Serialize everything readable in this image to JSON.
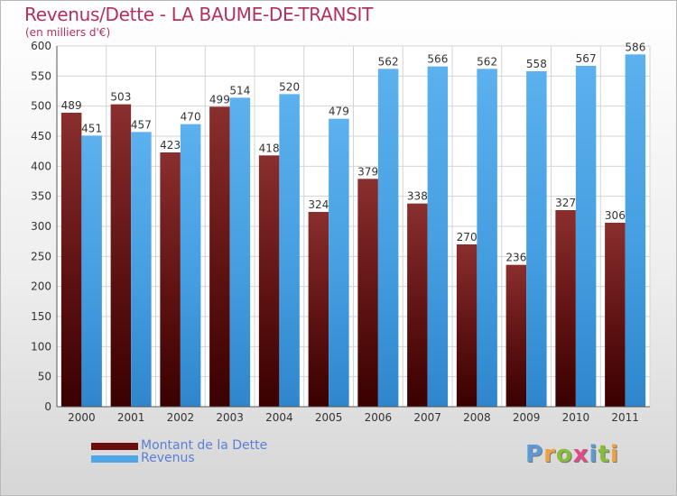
{
  "header": {
    "title": "Revenus/Dette - LA BAUME-DE-TRANSIT",
    "subtitle": "(en milliers d'€)"
  },
  "legend": {
    "items": [
      {
        "label": "Montant de la Dette",
        "color": "#6b0d0d"
      },
      {
        "label": "Revenus",
        "color": "#4ea6e6"
      }
    ]
  },
  "logo": {
    "text": "Proxiti",
    "letters": [
      "P",
      "r",
      "o",
      "x",
      "i",
      "t",
      "i"
    ],
    "colors": [
      "#5b9ad6",
      "#e9a341",
      "#87bd3b",
      "#de4c88",
      "#5b9ad6",
      "#87bd3b",
      "#e9a341"
    ]
  },
  "chart_data": {
    "type": "bar",
    "categories": [
      "2000",
      "2001",
      "2002",
      "2003",
      "2004",
      "2005",
      "2006",
      "2007",
      "2008",
      "2009",
      "2010",
      "2011"
    ],
    "series": [
      {
        "name": "Montant de la Dette",
        "color": "#6b0d0d",
        "values": [
          489,
          503,
          423,
          499,
          418,
          324,
          379,
          338,
          270,
          236,
          327,
          306
        ]
      },
      {
        "name": "Revenus",
        "color": "#4ea6e6",
        "values": [
          451,
          457,
          470,
          514,
          520,
          479,
          562,
          566,
          562,
          558,
          567,
          586
        ]
      }
    ],
    "yticks": [
      0,
      50,
      100,
      150,
      200,
      250,
      300,
      350,
      400,
      450,
      500,
      550,
      600
    ],
    "ylim": [
      0,
      600
    ],
    "grid": true,
    "legend_position": "bottom-left"
  }
}
